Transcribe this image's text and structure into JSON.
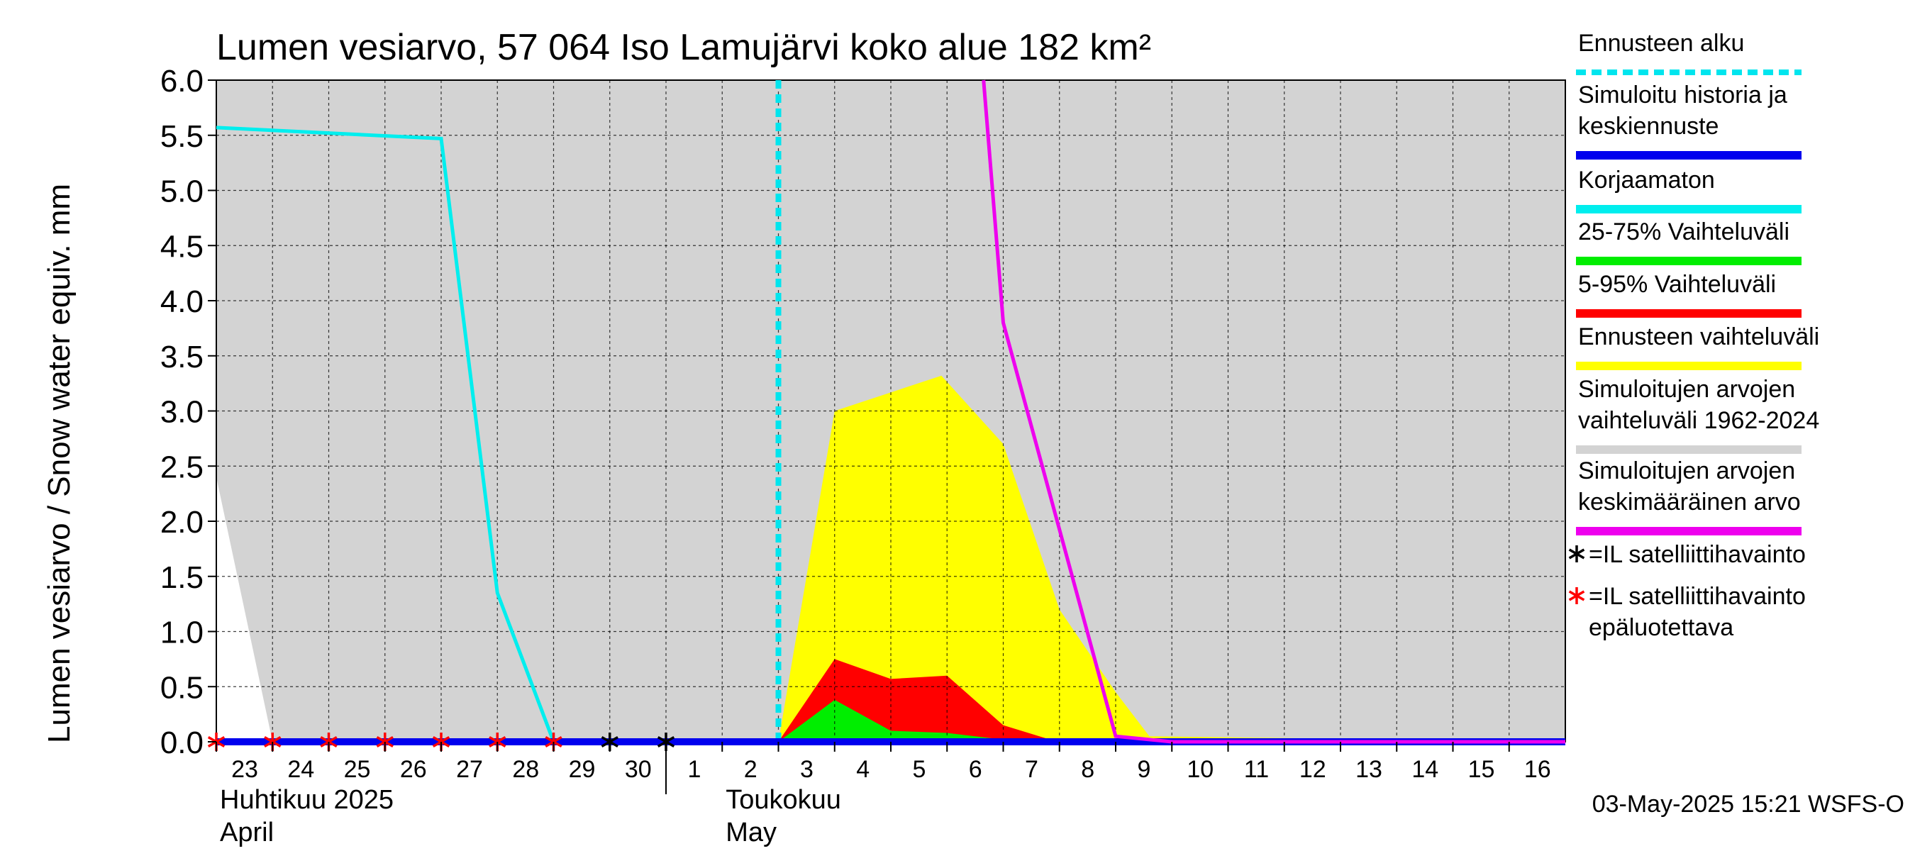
{
  "colors": {
    "background_band": "#d3d3d3",
    "yellow": "#ffff00",
    "red": "#ff0000",
    "green": "#00ee00",
    "forecast_start": "#00e5ee",
    "history": "#0000ee",
    "uncorrected": "#00eeee",
    "mean": "#ee00ee",
    "sat_ok": "#000000",
    "sat_bad": "#ff0000",
    "grid": "#000000"
  },
  "chart_data": {
    "type": "area",
    "title": "Lumen vesiarvo, 57 064 Iso Lamujärvi koko alue 182 km²",
    "ylabel": "Lumen vesiarvo / Snow water equiv.    mm",
    "ylim": [
      0,
      6.0
    ],
    "yticks": [
      "0.0",
      "0.5",
      "1.0",
      "1.5",
      "2.0",
      "2.5",
      "3.0",
      "3.5",
      "4.0",
      "4.5",
      "5.0",
      "5.5",
      "6.0"
    ],
    "x_tick_labels": [
      "23",
      "24",
      "25",
      "26",
      "27",
      "28",
      "29",
      "30",
      "1",
      "2",
      "3",
      "4",
      "5",
      "6",
      "7",
      "8",
      "9",
      "10",
      "11",
      "12",
      "13",
      "14",
      "15",
      "16"
    ],
    "x_day_index_range": [
      0,
      24
    ],
    "month_labels": [
      {
        "line1": "Huhtikuu  2025",
        "line2": "April",
        "at_day_index": 0
      },
      {
        "line1": "Toukokuu",
        "line2": "May",
        "at_day_index": 9
      }
    ],
    "grey_band": {
      "name": "Simuloitujen arvojen vaihteluväli 1962-2024",
      "upper": [
        [
          0,
          6.0
        ],
        [
          24,
          6.0
        ]
      ],
      "lower": [
        [
          0,
          2.4
        ],
        [
          1,
          0
        ],
        [
          24,
          0
        ]
      ]
    },
    "yellow_band": {
      "name": "Ennusteen vaihteluväli",
      "upper": [
        [
          10,
          0
        ],
        [
          11,
          3.0
        ],
        [
          12.9,
          3.32
        ],
        [
          14,
          2.7
        ],
        [
          15,
          1.2
        ],
        [
          16,
          0.45
        ],
        [
          16.6,
          0.05
        ],
        [
          24,
          0
        ]
      ]
    },
    "red_band": {
      "name": "5-95% Vaihteluväli",
      "upper": [
        [
          10,
          0
        ],
        [
          11,
          0.75
        ],
        [
          12,
          0.57
        ],
        [
          13,
          0.6
        ],
        [
          14,
          0.15
        ],
        [
          14.9,
          0.01
        ],
        [
          24,
          0
        ]
      ]
    },
    "green_band": {
      "name": "25-75% Vaihteluväli",
      "upper": [
        [
          10,
          0
        ],
        [
          11,
          0.38
        ],
        [
          12,
          0.1
        ],
        [
          13,
          0.08
        ],
        [
          14,
          0.02
        ],
        [
          15,
          0
        ],
        [
          24,
          0
        ]
      ]
    },
    "series": [
      {
        "name": "Korjaamaton",
        "points": [
          [
            0,
            5.57
          ],
          [
            4,
            5.47
          ],
          [
            5,
            1.35
          ],
          [
            6,
            0
          ],
          [
            8,
            0
          ]
        ]
      },
      {
        "name": "Simuloitu historia ja keskiennuste",
        "points": [
          [
            0,
            0
          ],
          [
            24,
            0
          ]
        ]
      },
      {
        "name": "Simuloitujen arvojen keskimääräinen arvo",
        "points": [
          [
            13.65,
            6.0
          ],
          [
            14,
            3.8
          ],
          [
            16,
            0.05
          ],
          [
            17,
            0
          ],
          [
            24,
            0
          ]
        ]
      }
    ],
    "forecast_start_day_index": 10,
    "satellite_observations": [
      {
        "day_index": 7,
        "value": 0,
        "reliable": true
      },
      {
        "day_index": 8,
        "value": 0,
        "reliable": true
      }
    ],
    "satellite_observations_unreliable": [
      {
        "day_index": 0,
        "value": 0
      },
      {
        "day_index": 1,
        "value": 0
      },
      {
        "day_index": 2,
        "value": 0
      },
      {
        "day_index": 3,
        "value": 0
      },
      {
        "day_index": 4,
        "value": 0
      },
      {
        "day_index": 5,
        "value": 0
      },
      {
        "day_index": 6,
        "value": 0
      }
    ],
    "legend_position": "right"
  },
  "legend": [
    {
      "lines": [
        "Ennusteen alku"
      ],
      "kind": "dashed",
      "color": "#00e5ee"
    },
    {
      "lines": [
        "Simuloitu historia ja",
        "keskiennuste"
      ],
      "kind": "line",
      "color": "#0000ee"
    },
    {
      "lines": [
        "Korjaamaton"
      ],
      "kind": "line",
      "color": "#00eeee"
    },
    {
      "lines": [
        "25-75% Vaihteluväli"
      ],
      "kind": "line",
      "color": "#00ee00"
    },
    {
      "lines": [
        "5-95% Vaihteluväli"
      ],
      "kind": "line",
      "color": "#ff0000"
    },
    {
      "lines": [
        "Ennusteen vaihteluväli"
      ],
      "kind": "line",
      "color": "#ffff00"
    },
    {
      "lines": [
        "Simuloitujen arvojen",
        "vaihteluväli 1962-2024"
      ],
      "kind": "line",
      "color": "#d3d3d3"
    },
    {
      "lines": [
        "Simuloitujen arvojen",
        "keskimääräinen arvo"
      ],
      "kind": "line",
      "color": "#ee00ee"
    },
    {
      "lines": [
        "=IL satelliittihavainto"
      ],
      "kind": "star",
      "color": "#000000"
    },
    {
      "lines": [
        "=IL satelliittihavainto",
        "epäluotettava"
      ],
      "kind": "star",
      "color": "#ff0000"
    }
  ],
  "footer": "03-May-2025 15:21 WSFS-O"
}
